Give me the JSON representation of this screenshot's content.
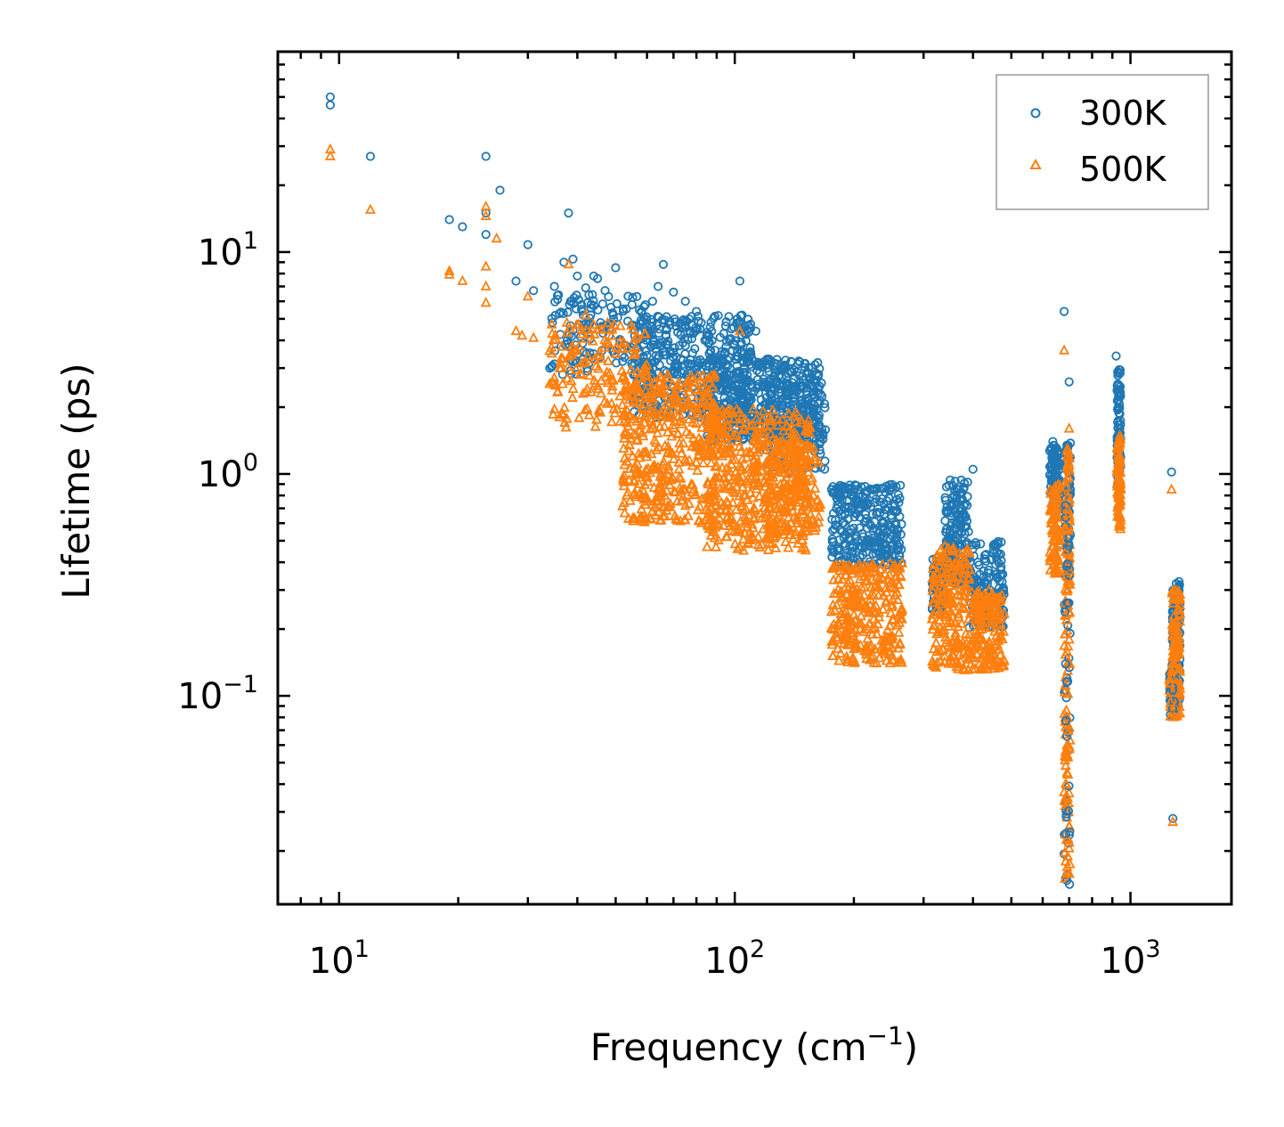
{
  "chart_data": {
    "type": "scatter",
    "xlabel": {
      "text": "Frequency (cm",
      "sup": "−1",
      "suffix": ")"
    },
    "ylabel": "Lifetime (ps)",
    "xscale": "log",
    "yscale": "log",
    "xlim": [
      7,
      1800
    ],
    "ylim": [
      0.0115,
      80
    ],
    "xticks": [
      {
        "base": "10",
        "exp": "1",
        "value": 10
      },
      {
        "base": "10",
        "exp": "2",
        "value": 100
      },
      {
        "base": "10",
        "exp": "3",
        "value": 1000
      }
    ],
    "yticks": [
      {
        "base": "10",
        "exp": "−1",
        "value": 0.1
      },
      {
        "base": "10",
        "exp": "0",
        "value": 1
      },
      {
        "base": "10",
        "exp": "1",
        "value": 10
      }
    ],
    "legend_position": "top-right",
    "series": [
      {
        "name": "300K",
        "marker": "circle",
        "color": "#1f77b4",
        "sample_points": [
          [
            9.5,
            50
          ],
          [
            9.5,
            46
          ],
          [
            12,
            27
          ],
          [
            19,
            14
          ],
          [
            20.5,
            13
          ],
          [
            23.5,
            27
          ],
          [
            23.5,
            15
          ],
          [
            23.5,
            12
          ],
          [
            25.5,
            19
          ],
          [
            30,
            10.8
          ],
          [
            28,
            7.4
          ],
          [
            31,
            6.7
          ],
          [
            35,
            7
          ],
          [
            37,
            9
          ],
          [
            38,
            15
          ],
          [
            39,
            9.3
          ],
          [
            40,
            7.8
          ],
          [
            42,
            6.9
          ],
          [
            44,
            7.8
          ],
          [
            45,
            7.6
          ],
          [
            47,
            6.7
          ],
          [
            50,
            8.5
          ],
          [
            55,
            4.7
          ],
          [
            58,
            5.4
          ],
          [
            62,
            6
          ],
          [
            64,
            7
          ],
          [
            66,
            8.8
          ],
          [
            70,
            6.6
          ],
          [
            75,
            6
          ],
          [
            80,
            5.4
          ],
          [
            103,
            7.4
          ],
          [
            113,
            4.4
          ],
          [
            400,
            1.05
          ],
          [
            680,
            5.4
          ],
          [
            700,
            2.6
          ],
          [
            920,
            3.4
          ],
          [
            1270,
            1.02
          ],
          [
            1280,
            0.028
          ]
        ],
        "clusters": [
          {
            "x": [
              34,
              62
            ],
            "y": [
              2.8,
              6.5
            ],
            "n": 140
          },
          {
            "x": [
              55,
              110
            ],
            "y": [
              1.8,
              5.2
            ],
            "n": 420
          },
          {
            "x": [
              85,
              165
            ],
            "y": [
              1.4,
              3.3
            ],
            "n": 420
          },
          {
            "x": [
              120,
              170
            ],
            "y": [
              1.0,
              2.6
            ],
            "n": 160
          },
          {
            "x": [
              175,
              265
            ],
            "y": [
              0.38,
              0.9
            ],
            "n": 300
          },
          {
            "x": [
              315,
              340
            ],
            "y": [
              0.23,
              0.42
            ],
            "n": 70
          },
          {
            "x": [
              340,
              390
            ],
            "y": [
              0.32,
              0.95
            ],
            "n": 180
          },
          {
            "x": [
              390,
              480
            ],
            "y": [
              0.2,
              0.5
            ],
            "n": 160
          },
          {
            "x": [
              625,
              665
            ],
            "y": [
              0.7,
              1.4
            ],
            "n": 100
          },
          {
            "x": [
              690,
              705
            ],
            "y": [
              0.45,
              1.4
            ],
            "n": 40
          },
          {
            "x": [
              925,
              945
            ],
            "y": [
              0.8,
              3.0
            ],
            "n": 80
          },
          {
            "x": [
              1275,
              1335
            ],
            "y": [
              0.09,
              0.33
            ],
            "n": 120
          }
        ]
      },
      {
        "name": "500K",
        "marker": "triangle",
        "color": "#ff7f0e",
        "sample_points": [
          [
            9.5,
            29
          ],
          [
            9.5,
            27
          ],
          [
            12,
            15.5
          ],
          [
            19,
            8.2
          ],
          [
            19,
            7.9
          ],
          [
            20.5,
            7.4
          ],
          [
            23.5,
            16
          ],
          [
            23.5,
            14.5
          ],
          [
            23.5,
            8.6
          ],
          [
            23.5,
            7
          ],
          [
            23.5,
            5.9
          ],
          [
            25,
            11.5
          ],
          [
            28,
            4.4
          ],
          [
            29,
            4.2
          ],
          [
            30,
            6.3
          ],
          [
            31,
            4.1
          ],
          [
            38,
            8.8
          ],
          [
            42,
            5.2
          ],
          [
            46,
            3.3
          ],
          [
            103,
            4.4
          ],
          [
            680,
            3.6
          ],
          [
            700,
            1.6
          ],
          [
            1270,
            0.85
          ],
          [
            1280,
            0.027
          ]
        ],
        "clusters": [
          {
            "x": [
              34,
              60
            ],
            "y": [
              1.6,
              4.8
            ],
            "n": 160
          },
          {
            "x": [
              52,
              90
            ],
            "y": [
              0.6,
              2.8
            ],
            "n": 420
          },
          {
            "x": [
              85,
              155
            ],
            "y": [
              0.45,
              2.0
            ],
            "n": 460
          },
          {
            "x": [
              120,
              165
            ],
            "y": [
              0.55,
              1.4
            ],
            "n": 160
          },
          {
            "x": [
              175,
              265
            ],
            "y": [
              0.14,
              0.4
            ],
            "n": 300
          },
          {
            "x": [
              315,
              395
            ],
            "y": [
              0.13,
              0.48
            ],
            "n": 200
          },
          {
            "x": [
              395,
              480
            ],
            "y": [
              0.13,
              0.3
            ],
            "n": 160
          },
          {
            "x": [
              625,
              665
            ],
            "y": [
              0.35,
              0.9
            ],
            "n": 100
          },
          {
            "x": [
              690,
              705
            ],
            "y": [
              0.3,
              1.3
            ],
            "n": 40
          },
          {
            "x": [
              925,
              945
            ],
            "y": [
              0.55,
              1.5
            ],
            "n": 80
          },
          {
            "x": [
              1275,
              1335
            ],
            "y": [
              0.08,
              0.3
            ],
            "n": 120
          }
        ]
      }
    ],
    "vertical_streaks": [
      {
        "x": 690,
        "y": [
          0.014,
          1.0
        ]
      },
      {
        "x": 693,
        "y": [
          0.014,
          0.8
        ]
      },
      {
        "x": 1275,
        "y": [
          0.08,
          0.14
        ]
      }
    ]
  }
}
